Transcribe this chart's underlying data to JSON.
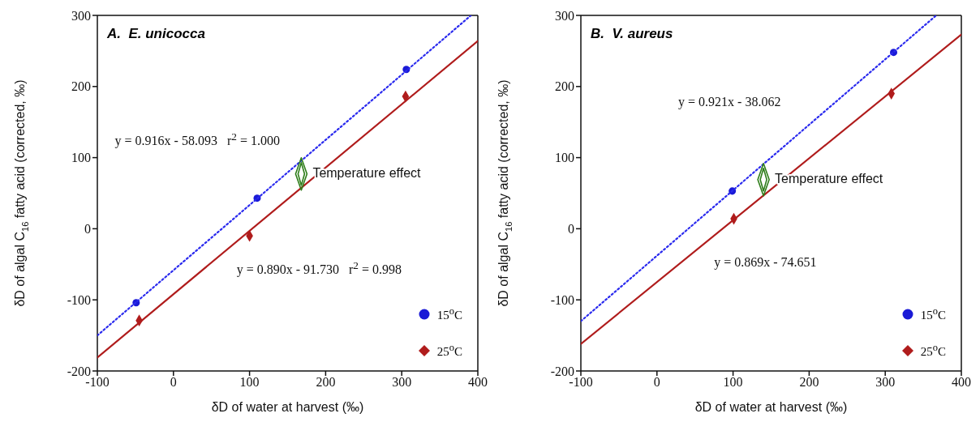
{
  "chart_data": [
    {
      "type": "scatter",
      "title": "A.  E. unicocca",
      "xlabel": "δD of water at harvest  (‰)",
      "ylabel": "δD of algal C$_{16}$ fatty acid (corrected, ‰)",
      "xlim": [
        -100,
        400
      ],
      "ylim": [
        -200,
        300
      ],
      "xticks": [
        -100,
        0,
        100,
        200,
        300,
        400
      ],
      "yticks": [
        -200,
        -100,
        0,
        100,
        200,
        300
      ],
      "grid": false,
      "legend": "bottom right",
      "series": [
        {
          "name": "15$^{o}$C",
          "color": "#1a1ad6",
          "marker": "circle",
          "x": [
            -49,
            110,
            306
          ],
          "values": [
            -104,
            43,
            224
          ]
        },
        {
          "name": "25$^{o}$C",
          "color": "#b01c1c",
          "marker": "diamond",
          "x": [
            -45,
            100,
            305
          ],
          "values": [
            -129,
            -10,
            186
          ]
        },
        {
          "type": "line",
          "color": "#2a2aee",
          "line_style": "dotted",
          "x": [
            -100,
            391
          ],
          "values": [
            -150,
            300
          ]
        },
        {
          "type": "line",
          "color": "#b01c1c",
          "line_style": "solid",
          "x": [
            -100,
            400
          ],
          "values": [
            -181,
            264
          ]
        }
      ],
      "annotations": [
        {
          "text": "Temperature effect",
          "x": 168,
          "y": 77
        },
        "y = 0.916x - 58.093   r$^{2}$ = 1.000",
        "y = 0.890x - 91.730   r$^{2}$ = 0.998"
      ]
    },
    {
      "type": "scatter",
      "title": "B.  V. aureus",
      "xlabel": "δD of water at harvest  (‰)",
      "ylabel": "δD of algal C$_{16}$ fatty acid (corrected, ‰)",
      "xlim": [
        -100,
        400
      ],
      "ylim": [
        -200,
        300
      ],
      "xticks": [
        -100,
        0,
        100,
        200,
        300,
        400
      ],
      "yticks": [
        -200,
        -100,
        0,
        100,
        200,
        300
      ],
      "grid": false,
      "legend": "bottom right",
      "series": [
        {
          "name": "15$^{o}$C",
          "color": "#1a1ad6",
          "marker": "circle",
          "x": [
            99,
            311
          ],
          "values": [
            53,
            248
          ]
        },
        {
          "name": "25$^{o}$C",
          "color": "#b01c1c",
          "marker": "diamond",
          "x": [
            101,
            308
          ],
          "values": [
            14,
            190
          ]
        },
        {
          "type": "line",
          "color": "#2a2aee",
          "line_style": "dotted",
          "x": [
            -100,
            367
          ],
          "values": [
            -130,
            300
          ]
        },
        {
          "type": "line",
          "color": "#b01c1c",
          "line_style": "solid",
          "x": [
            -100,
            400
          ],
          "values": [
            -162,
            273
          ]
        }
      ],
      "annotations": [
        {
          "text": "Temperature effect",
          "x": 140,
          "y": 69
        },
        "y = 0.921x - 38.062",
        "y = 0.869x - 74.651"
      ]
    }
  ]
}
